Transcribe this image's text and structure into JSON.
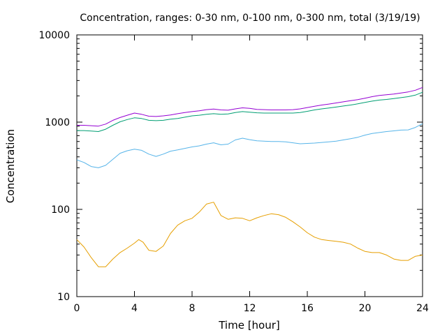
{
  "chart_data": {
    "type": "line",
    "title": "Concentration, ranges: 0-30 nm, 0-100 nm, 0-300 nm, total (3/19/19)",
    "xlabel": "Time [hour]",
    "ylabel": "Concentration",
    "xlim": [
      0,
      24
    ],
    "ylim": [
      10,
      10000
    ],
    "yscale": "log",
    "xticks": [
      0,
      4,
      8,
      12,
      16,
      20,
      24
    ],
    "yticks": [
      10,
      100,
      1000,
      10000
    ],
    "xtick_labels": [
      "0",
      "4",
      "8",
      "12",
      "16",
      "20",
      "24"
    ],
    "ytick_labels": [
      "10",
      "100",
      "1000",
      "10000"
    ],
    "grid": false,
    "legend": "none",
    "series": [
      {
        "color": "#e69f00",
        "x": [
          0,
          0.5,
          1,
          1.5,
          2,
          2.5,
          3,
          3.5,
          4,
          4.3,
          4.6,
          5,
          5.5,
          6,
          6.5,
          7,
          7.5,
          8,
          8.5,
          9,
          9.5,
          10,
          10.5,
          11,
          11.5,
          12,
          12.5,
          13,
          13.5,
          14,
          14.5,
          15,
          15.5,
          16,
          16.5,
          17,
          17.5,
          18,
          18.5,
          19,
          19.5,
          20,
          20.5,
          21,
          21.5,
          22,
          22.5,
          23,
          23.5,
          24
        ],
        "y": [
          45,
          37,
          28,
          22,
          22,
          27,
          32,
          36,
          41,
          45,
          42,
          34,
          33,
          38,
          53,
          66,
          74,
          79,
          93,
          115,
          121,
          85,
          77,
          80,
          79,
          74,
          80,
          85,
          89,
          87,
          81,
          72,
          63,
          54,
          48,
          45,
          44,
          43,
          42,
          40,
          36,
          33,
          32,
          32,
          30,
          27,
          26,
          26,
          29,
          30
        ]
      },
      {
        "color": "#56b4e9",
        "x": [
          0,
          0.5,
          1,
          1.5,
          2,
          2.5,
          3,
          3.5,
          4,
          4.5,
          5,
          5.5,
          6,
          6.5,
          7,
          7.5,
          8,
          8.5,
          9,
          9.5,
          10,
          10.5,
          11,
          11.5,
          12,
          12.5,
          13,
          13.5,
          14,
          14.5,
          15,
          15.5,
          16,
          16.5,
          17,
          17.5,
          18,
          18.5,
          19,
          19.5,
          20,
          20.5,
          21,
          21.5,
          22,
          22.5,
          23,
          23.5,
          24
        ],
        "y": [
          370,
          345,
          310,
          300,
          320,
          375,
          440,
          470,
          490,
          475,
          430,
          405,
          430,
          465,
          480,
          500,
          520,
          535,
          560,
          580,
          550,
          560,
          625,
          655,
          630,
          610,
          605,
          600,
          600,
          595,
          580,
          565,
          570,
          575,
          585,
          595,
          605,
          625,
          645,
          670,
          710,
          740,
          760,
          780,
          795,
          810,
          815,
          870,
          960
        ]
      },
      {
        "color": "#009e73",
        "x": [
          0,
          0.5,
          1,
          1.5,
          2,
          2.5,
          3,
          3.5,
          4,
          4.5,
          5,
          5.5,
          6,
          6.5,
          7,
          7.5,
          8,
          8.5,
          9,
          9.5,
          10,
          10.5,
          11,
          11.5,
          12,
          12.5,
          13,
          13.5,
          14,
          14.5,
          15,
          15.5,
          16,
          16.5,
          17,
          17.5,
          18,
          18.5,
          19,
          19.5,
          20,
          20.5,
          21,
          21.5,
          22,
          22.5,
          23,
          23.5,
          24
        ],
        "y": [
          800,
          800,
          790,
          780,
          830,
          920,
          1010,
          1070,
          1120,
          1100,
          1050,
          1040,
          1050,
          1080,
          1100,
          1140,
          1180,
          1200,
          1230,
          1250,
          1230,
          1240,
          1290,
          1320,
          1300,
          1280,
          1270,
          1270,
          1270,
          1270,
          1270,
          1290,
          1330,
          1380,
          1420,
          1450,
          1490,
          1530,
          1570,
          1620,
          1680,
          1740,
          1790,
          1820,
          1860,
          1910,
          1960,
          2040,
          2200
        ]
      },
      {
        "color": "#9400d3",
        "x": [
          0,
          0.5,
          1,
          1.5,
          2,
          2.5,
          3,
          3.5,
          4,
          4.5,
          5,
          5.5,
          6,
          6.5,
          7,
          7.5,
          8,
          8.5,
          9,
          9.5,
          10,
          10.5,
          11,
          11.5,
          12,
          12.5,
          13,
          13.5,
          14,
          14.5,
          15,
          15.5,
          16,
          16.5,
          17,
          17.5,
          18,
          18.5,
          19,
          19.5,
          20,
          20.5,
          21,
          21.5,
          22,
          22.5,
          23,
          23.5,
          24
        ],
        "y": [
          920,
          920,
          910,
          900,
          950,
          1050,
          1130,
          1200,
          1270,
          1230,
          1170,
          1160,
          1180,
          1210,
          1250,
          1290,
          1320,
          1350,
          1390,
          1410,
          1380,
          1370,
          1420,
          1460,
          1440,
          1400,
          1390,
          1380,
          1380,
          1380,
          1390,
          1420,
          1470,
          1520,
          1570,
          1610,
          1660,
          1710,
          1760,
          1810,
          1880,
          1960,
          2020,
          2060,
          2100,
          2160,
          2220,
          2320,
          2500
        ]
      }
    ]
  }
}
